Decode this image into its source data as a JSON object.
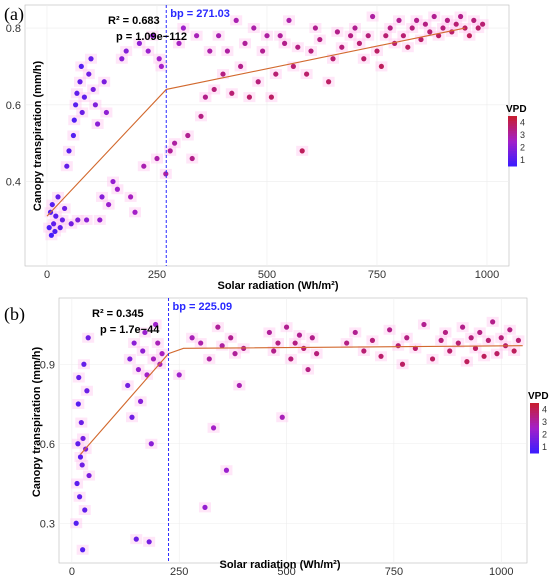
{
  "colors": {
    "low": "#3b1cff",
    "mid": "#a420c8",
    "high": "#c81e2c",
    "fit": "#d2692e",
    "breakpoint": "#2a2aff",
    "halo": "#ffc8f0"
  },
  "chart_data": [
    {
      "panel": "(a)",
      "type": "scatter",
      "xlabel": "Solar radiation (Wh/m²)",
      "ylabel": "Canopy transpiration (mm/h)",
      "xlim": [
        -50,
        1050
      ],
      "ylim": [
        0.18,
        0.86
      ],
      "xticks": [
        0,
        250,
        500,
        750,
        1000
      ],
      "yticks": [
        0.4,
        0.6,
        0.8
      ],
      "r2": "R² = 0.683",
      "p": "p = 1.09e−112",
      "bp_label": "bp = 271.03",
      "breakpoint": 271.03,
      "fit": [
        [
          0,
          0.31
        ],
        [
          271.03,
          0.64
        ],
        [
          950,
          0.8
        ]
      ],
      "color_legend": {
        "title": "VPD",
        "ticks": [
          "4",
          "3",
          "2",
          "1"
        ],
        "range": [
          0.5,
          4.5
        ]
      },
      "points": [
        [
          5,
          0.28,
          0.8
        ],
        [
          8,
          0.32,
          0.9
        ],
        [
          10,
          0.26,
          0.7
        ],
        [
          12,
          0.34,
          1.0
        ],
        [
          15,
          0.29,
          1.2
        ],
        [
          18,
          0.27,
          0.9
        ],
        [
          20,
          0.31,
          1.1
        ],
        [
          25,
          0.36,
          1.3
        ],
        [
          30,
          0.28,
          1.2
        ],
        [
          35,
          0.3,
          1.4
        ],
        [
          40,
          0.33,
          1.5
        ],
        [
          45,
          0.44,
          1.3
        ],
        [
          50,
          0.48,
          1.1
        ],
        [
          55,
          0.29,
          1.6
        ],
        [
          60,
          0.52,
          1.0
        ],
        [
          62,
          0.56,
          0.9
        ],
        [
          65,
          0.6,
          1.1
        ],
        [
          68,
          0.63,
          1.2
        ],
        [
          70,
          0.3,
          1.8
        ],
        [
          75,
          0.66,
          1.3
        ],
        [
          78,
          0.7,
          1.0
        ],
        [
          80,
          0.58,
          1.4
        ],
        [
          85,
          0.62,
          1.2
        ],
        [
          90,
          0.3,
          2.0
        ],
        [
          95,
          0.68,
          1.5
        ],
        [
          100,
          0.72,
          1.3
        ],
        [
          105,
          0.64,
          1.6
        ],
        [
          110,
          0.6,
          1.8
        ],
        [
          115,
          0.55,
          2.0
        ],
        [
          120,
          0.3,
          2.2
        ],
        [
          125,
          0.36,
          1.9
        ],
        [
          130,
          0.66,
          1.7
        ],
        [
          135,
          0.58,
          2.1
        ],
        [
          140,
          0.34,
          2.3
        ],
        [
          150,
          0.4,
          2.2
        ],
        [
          160,
          0.38,
          2.4
        ],
        [
          170,
          0.72,
          2.0
        ],
        [
          180,
          0.74,
          1.9
        ],
        [
          190,
          0.36,
          2.6
        ],
        [
          200,
          0.32,
          2.5
        ],
        [
          210,
          0.76,
          2.1
        ],
        [
          220,
          0.44,
          2.8
        ],
        [
          230,
          0.74,
          2.3
        ],
        [
          240,
          0.78,
          2.2
        ],
        [
          250,
          0.46,
          2.9
        ],
        [
          255,
          0.72,
          2.4
        ],
        [
          260,
          0.7,
          2.5
        ],
        [
          270,
          0.42,
          3.0
        ],
        [
          280,
          0.48,
          3.1
        ],
        [
          290,
          0.5,
          3.0
        ],
        [
          300,
          0.76,
          2.6
        ],
        [
          310,
          0.8,
          2.4
        ],
        [
          320,
          0.52,
          3.2
        ],
        [
          330,
          0.46,
          3.3
        ],
        [
          340,
          0.78,
          2.7
        ],
        [
          350,
          0.57,
          3.4
        ],
        [
          360,
          0.62,
          3.3
        ],
        [
          370,
          0.74,
          2.9
        ],
        [
          380,
          0.64,
          3.5
        ],
        [
          390,
          0.78,
          2.8
        ],
        [
          400,
          0.68,
          3.4
        ],
        [
          410,
          0.74,
          3.0
        ],
        [
          420,
          0.63,
          3.6
        ],
        [
          430,
          0.82,
          2.8
        ],
        [
          440,
          0.7,
          3.3
        ],
        [
          450,
          0.76,
          3.1
        ],
        [
          460,
          0.62,
          3.7
        ],
        [
          470,
          0.8,
          2.9
        ],
        [
          480,
          0.66,
          3.5
        ],
        [
          490,
          0.74,
          3.2
        ],
        [
          500,
          0.78,
          3.0
        ],
        [
          510,
          0.62,
          3.8
        ],
        [
          520,
          0.68,
          3.6
        ],
        [
          530,
          0.78,
          3.1
        ],
        [
          540,
          0.76,
          3.3
        ],
        [
          550,
          0.82,
          2.9
        ],
        [
          560,
          0.7,
          3.6
        ],
        [
          570,
          0.75,
          3.4
        ],
        [
          580,
          0.48,
          3.9
        ],
        [
          590,
          0.68,
          3.7
        ],
        [
          600,
          0.74,
          3.5
        ],
        [
          610,
          0.8,
          3.2
        ],
        [
          620,
          0.77,
          3.4
        ],
        [
          640,
          0.66,
          3.8
        ],
        [
          650,
          0.72,
          3.6
        ],
        [
          660,
          0.79,
          3.3
        ],
        [
          670,
          0.75,
          3.5
        ],
        [
          690,
          0.78,
          3.4
        ],
        [
          700,
          0.8,
          3.2
        ],
        [
          710,
          0.76,
          3.6
        ],
        [
          720,
          0.72,
          3.7
        ],
        [
          730,
          0.78,
          3.5
        ],
        [
          740,
          0.83,
          3.0
        ],
        [
          750,
          0.74,
          3.8
        ],
        [
          760,
          0.7,
          3.9
        ],
        [
          770,
          0.78,
          3.6
        ],
        [
          780,
          0.8,
          3.4
        ],
        [
          790,
          0.76,
          3.7
        ],
        [
          800,
          0.82,
          3.2
        ],
        [
          810,
          0.78,
          3.6
        ],
        [
          820,
          0.75,
          3.8
        ],
        [
          830,
          0.8,
          3.5
        ],
        [
          840,
          0.82,
          3.3
        ],
        [
          850,
          0.77,
          3.7
        ],
        [
          860,
          0.81,
          3.4
        ],
        [
          870,
          0.79,
          3.6
        ],
        [
          880,
          0.83,
          3.2
        ],
        [
          890,
          0.78,
          3.8
        ],
        [
          900,
          0.8,
          3.5
        ],
        [
          910,
          0.82,
          3.4
        ],
        [
          920,
          0.79,
          3.7
        ],
        [
          930,
          0.81,
          3.6
        ],
        [
          940,
          0.83,
          3.3
        ],
        [
          950,
          0.8,
          3.8
        ],
        [
          960,
          0.78,
          3.9
        ],
        [
          970,
          0.82,
          3.5
        ],
        [
          980,
          0.8,
          3.7
        ],
        [
          990,
          0.81,
          3.6
        ]
      ]
    },
    {
      "panel": "(b)",
      "type": "scatter",
      "xlabel": "Solar radiation (Wh/m²)",
      "ylabel": "Canopy transpiration (mm/h)",
      "xlim": [
        -30,
        1060
      ],
      "ylim": [
        0.15,
        1.15
      ],
      "xticks": [
        0,
        250,
        500,
        750,
        1000
      ],
      "yticks": [
        0.3,
        0.6,
        0.9
      ],
      "r2": "R² = 0.345",
      "p": "p = 1.7e−44",
      "bp_label": "bp = 225.09",
      "breakpoint": 225.09,
      "fit": [
        [
          20,
          0.56
        ],
        [
          225.09,
          0.94
        ],
        [
          260,
          0.96
        ],
        [
          1050,
          0.97
        ]
      ],
      "color_legend": {
        "title": "VPD",
        "ticks": [
          "4",
          "3",
          "2",
          "1"
        ],
        "range": [
          0.5,
          4.5
        ]
      },
      "points": [
        [
          10,
          0.3,
          1.0
        ],
        [
          12,
          0.45,
          1.1
        ],
        [
          14,
          0.6,
          1.2
        ],
        [
          15,
          0.75,
          1.0
        ],
        [
          16,
          0.85,
          1.3
        ],
        [
          18,
          0.4,
          1.2
        ],
        [
          20,
          0.55,
          1.1
        ],
        [
          22,
          0.68,
          1.4
        ],
        [
          24,
          0.52,
          1.5
        ],
        [
          25,
          0.2,
          1.0
        ],
        [
          26,
          0.62,
          1.6
        ],
        [
          28,
          0.9,
          1.3
        ],
        [
          30,
          0.35,
          1.2
        ],
        [
          32,
          0.58,
          1.8
        ],
        [
          35,
          0.8,
          1.4
        ],
        [
          38,
          1.0,
          1.5
        ],
        [
          40,
          0.48,
          1.7
        ],
        [
          130,
          0.82,
          1.6
        ],
        [
          135,
          0.92,
          1.8
        ],
        [
          140,
          0.7,
          1.5
        ],
        [
          145,
          0.98,
          2.0
        ],
        [
          150,
          0.24,
          1.4
        ],
        [
          155,
          0.88,
          2.2
        ],
        [
          160,
          0.76,
          1.9
        ],
        [
          165,
          0.95,
          2.1
        ],
        [
          170,
          1.02,
          2.3
        ],
        [
          175,
          0.86,
          2.5
        ],
        [
          180,
          0.23,
          1.6
        ],
        [
          185,
          0.6,
          2.0
        ],
        [
          190,
          0.92,
          2.6
        ],
        [
          195,
          1.05,
          2.4
        ],
        [
          200,
          0.98,
          2.7
        ],
        [
          205,
          0.9,
          2.8
        ],
        [
          210,
          0.94,
          2.6
        ],
        [
          250,
          0.86,
          2.4
        ],
        [
          280,
          1.0,
          2.7
        ],
        [
          300,
          0.98,
          2.9
        ],
        [
          310,
          0.36,
          2.2
        ],
        [
          320,
          0.92,
          3.0
        ],
        [
          330,
          0.66,
          2.5
        ],
        [
          340,
          1.04,
          3.1
        ],
        [
          350,
          0.97,
          3.0
        ],
        [
          360,
          0.5,
          2.3
        ],
        [
          370,
          1.0,
          3.2
        ],
        [
          380,
          0.94,
          3.1
        ],
        [
          390,
          0.82,
          2.8
        ],
        [
          400,
          0.96,
          3.3
        ],
        [
          460,
          1.02,
          3.1
        ],
        [
          470,
          0.95,
          3.3
        ],
        [
          480,
          0.98,
          3.4
        ],
        [
          490,
          0.7,
          2.7
        ],
        [
          500,
          1.04,
          3.2
        ],
        [
          510,
          0.92,
          3.5
        ],
        [
          520,
          0.98,
          3.4
        ],
        [
          530,
          1.01,
          3.2
        ],
        [
          540,
          0.96,
          3.6
        ],
        [
          550,
          0.88,
          3.4
        ],
        [
          560,
          1.0,
          3.3
        ],
        [
          570,
          0.94,
          3.5
        ],
        [
          640,
          0.98,
          3.4
        ],
        [
          660,
          1.02,
          3.2
        ],
        [
          680,
          0.95,
          3.6
        ],
        [
          700,
          0.99,
          3.5
        ],
        [
          720,
          0.93,
          3.7
        ],
        [
          740,
          1.03,
          3.3
        ],
        [
          760,
          0.97,
          3.6
        ],
        [
          770,
          0.9,
          3.8
        ],
        [
          780,
          1.0,
          3.4
        ],
        [
          800,
          0.96,
          3.7
        ],
        [
          820,
          1.05,
          3.2
        ],
        [
          840,
          0.92,
          3.8
        ],
        [
          860,
          0.99,
          3.5
        ],
        [
          870,
          1.02,
          3.4
        ],
        [
          880,
          0.95,
          3.7
        ],
        [
          900,
          0.98,
          3.6
        ],
        [
          910,
          1.04,
          3.3
        ],
        [
          920,
          0.91,
          3.9
        ],
        [
          930,
          1.0,
          3.5
        ],
        [
          940,
          0.96,
          3.8
        ],
        [
          950,
          1.02,
          3.4
        ],
        [
          960,
          0.93,
          3.9
        ],
        [
          970,
          0.99,
          3.6
        ],
        [
          980,
          1.06,
          3.3
        ],
        [
          990,
          0.94,
          3.8
        ],
        [
          1000,
          1.0,
          3.5
        ],
        [
          1010,
          0.97,
          3.7
        ],
        [
          1020,
          1.03,
          3.4
        ],
        [
          1030,
          0.95,
          3.9
        ],
        [
          1040,
          0.99,
          3.6
        ]
      ]
    }
  ]
}
